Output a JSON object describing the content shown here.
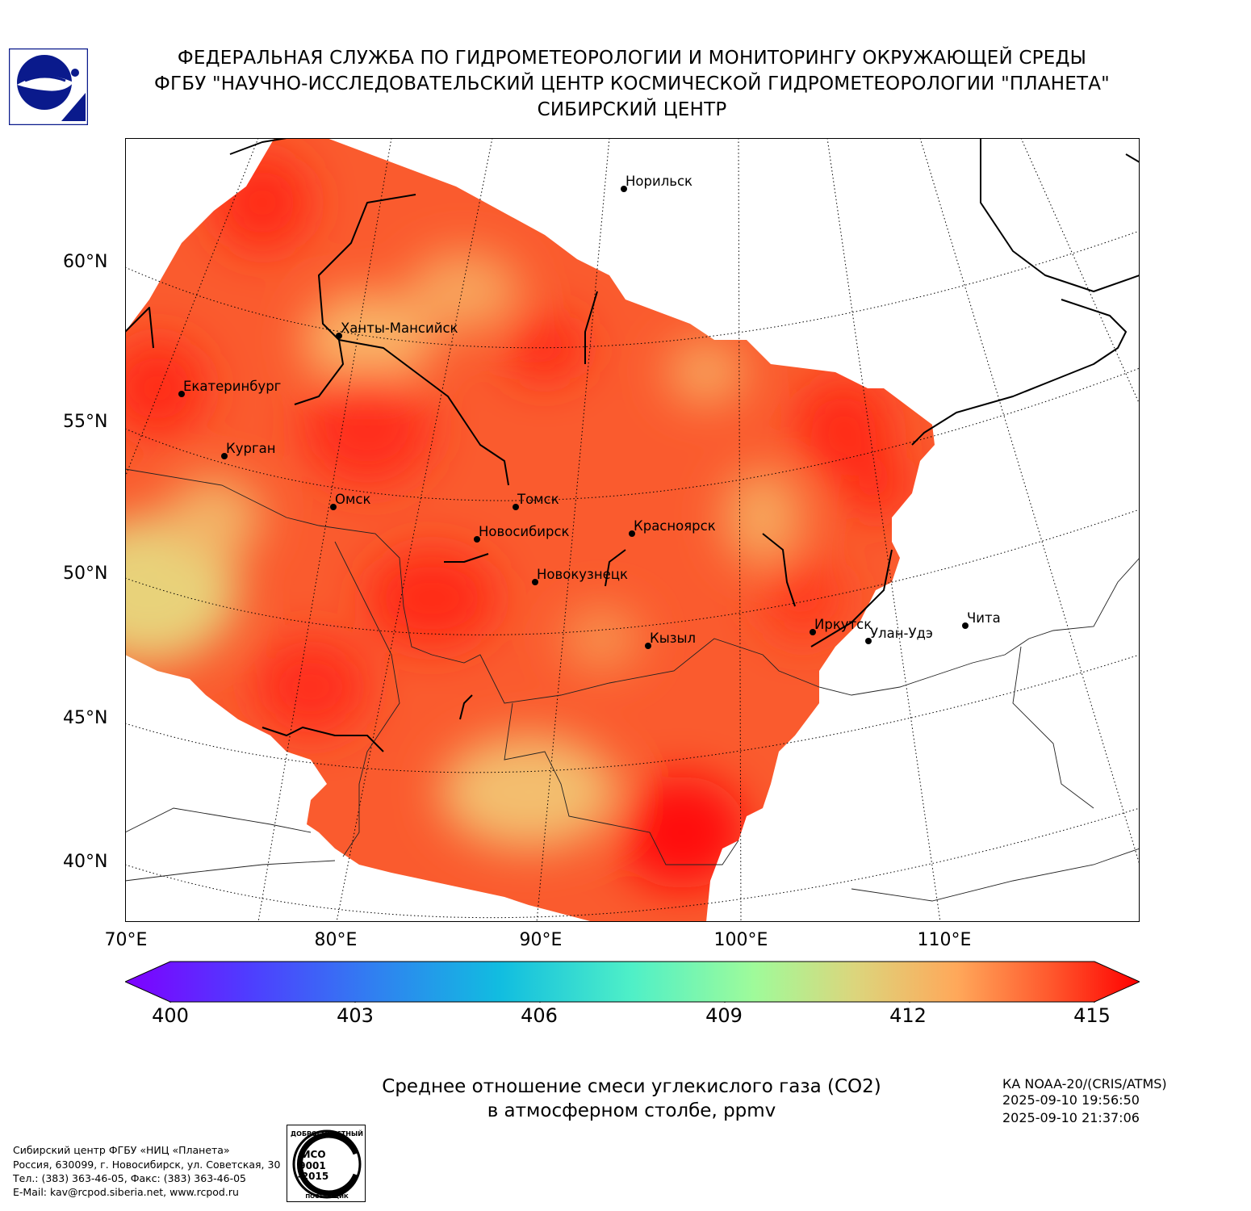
{
  "header": {
    "line1": "ФЕДЕРАЛЬНАЯ СЛУЖБА ПО ГИДРОМЕТЕОРОЛОГИИ И МОНИТОРИНГУ ОКРУЖАЮЩЕЙ СРЕДЫ",
    "line2": "ФГБУ \"НАУЧНО-ИССЛЕДОВАТЕЛЬСКИЙ ЦЕНТР КОСМИЧЕСКОЙ ГИДРОМЕТЕОРОЛОГИИ \"ПЛАНЕТА\"",
    "line3": "СИБИРСКИЙ ЦЕНТР"
  },
  "map": {
    "lat_labels": [
      "60°N",
      "55°N",
      "50°N",
      "45°N",
      "40°N"
    ],
    "lon_labels": [
      "70°E",
      "80°E",
      "90°E",
      "100°E",
      "110°E"
    ],
    "cities": [
      {
        "name": "Норильск"
      },
      {
        "name": "Ханты-Мансийск"
      },
      {
        "name": "Екатеринбург"
      },
      {
        "name": "Курган"
      },
      {
        "name": "Омск"
      },
      {
        "name": "Томск"
      },
      {
        "name": "Новосибирск"
      },
      {
        "name": "Красноярск"
      },
      {
        "name": "Новокузнецк"
      },
      {
        "name": "Кызыл"
      },
      {
        "name": "Иркутск"
      },
      {
        "name": "Улан-Удэ"
      },
      {
        "name": "Чита"
      }
    ],
    "colors": {
      "low": "#e8d27a",
      "mid": "#f8a35c",
      "high": "#ff2a17",
      "max": "#ff1010"
    }
  },
  "colorbar": {
    "ticks": [
      "400",
      "403",
      "406",
      "409",
      "412",
      "415"
    ],
    "min": 400,
    "max": 415
  },
  "caption": {
    "line1": "Среднее отношение смеси углекислого газа (CO2)",
    "line2": "в атмосферном столбе, ppmv"
  },
  "satellite": {
    "name": "КА NOAA-20/(CRIS/ATMS)",
    "time1": "2025-09-10 19:56:50",
    "time2": "2025-09-10 21:37:06"
  },
  "footer": {
    "line1": "Сибирский центр ФГБУ «НИЦ «Планета»",
    "line2": "Россия, 630099, г. Новосибирск, ул. Советская, 30",
    "line3": "Тел.: (383) 363-46-05, Факс: (383) 363-46-05",
    "line4": "E-Mail: kav@rcpod.siberia.net, www.rcpod.ru"
  },
  "iso_stamp": {
    "top": "ДОБРОСОВЕСТНЫЙ",
    "mid1": "ИСО",
    "mid2": "9001",
    "mid3": "-2015",
    "bottom": "ПОСТАВЩИК"
  }
}
